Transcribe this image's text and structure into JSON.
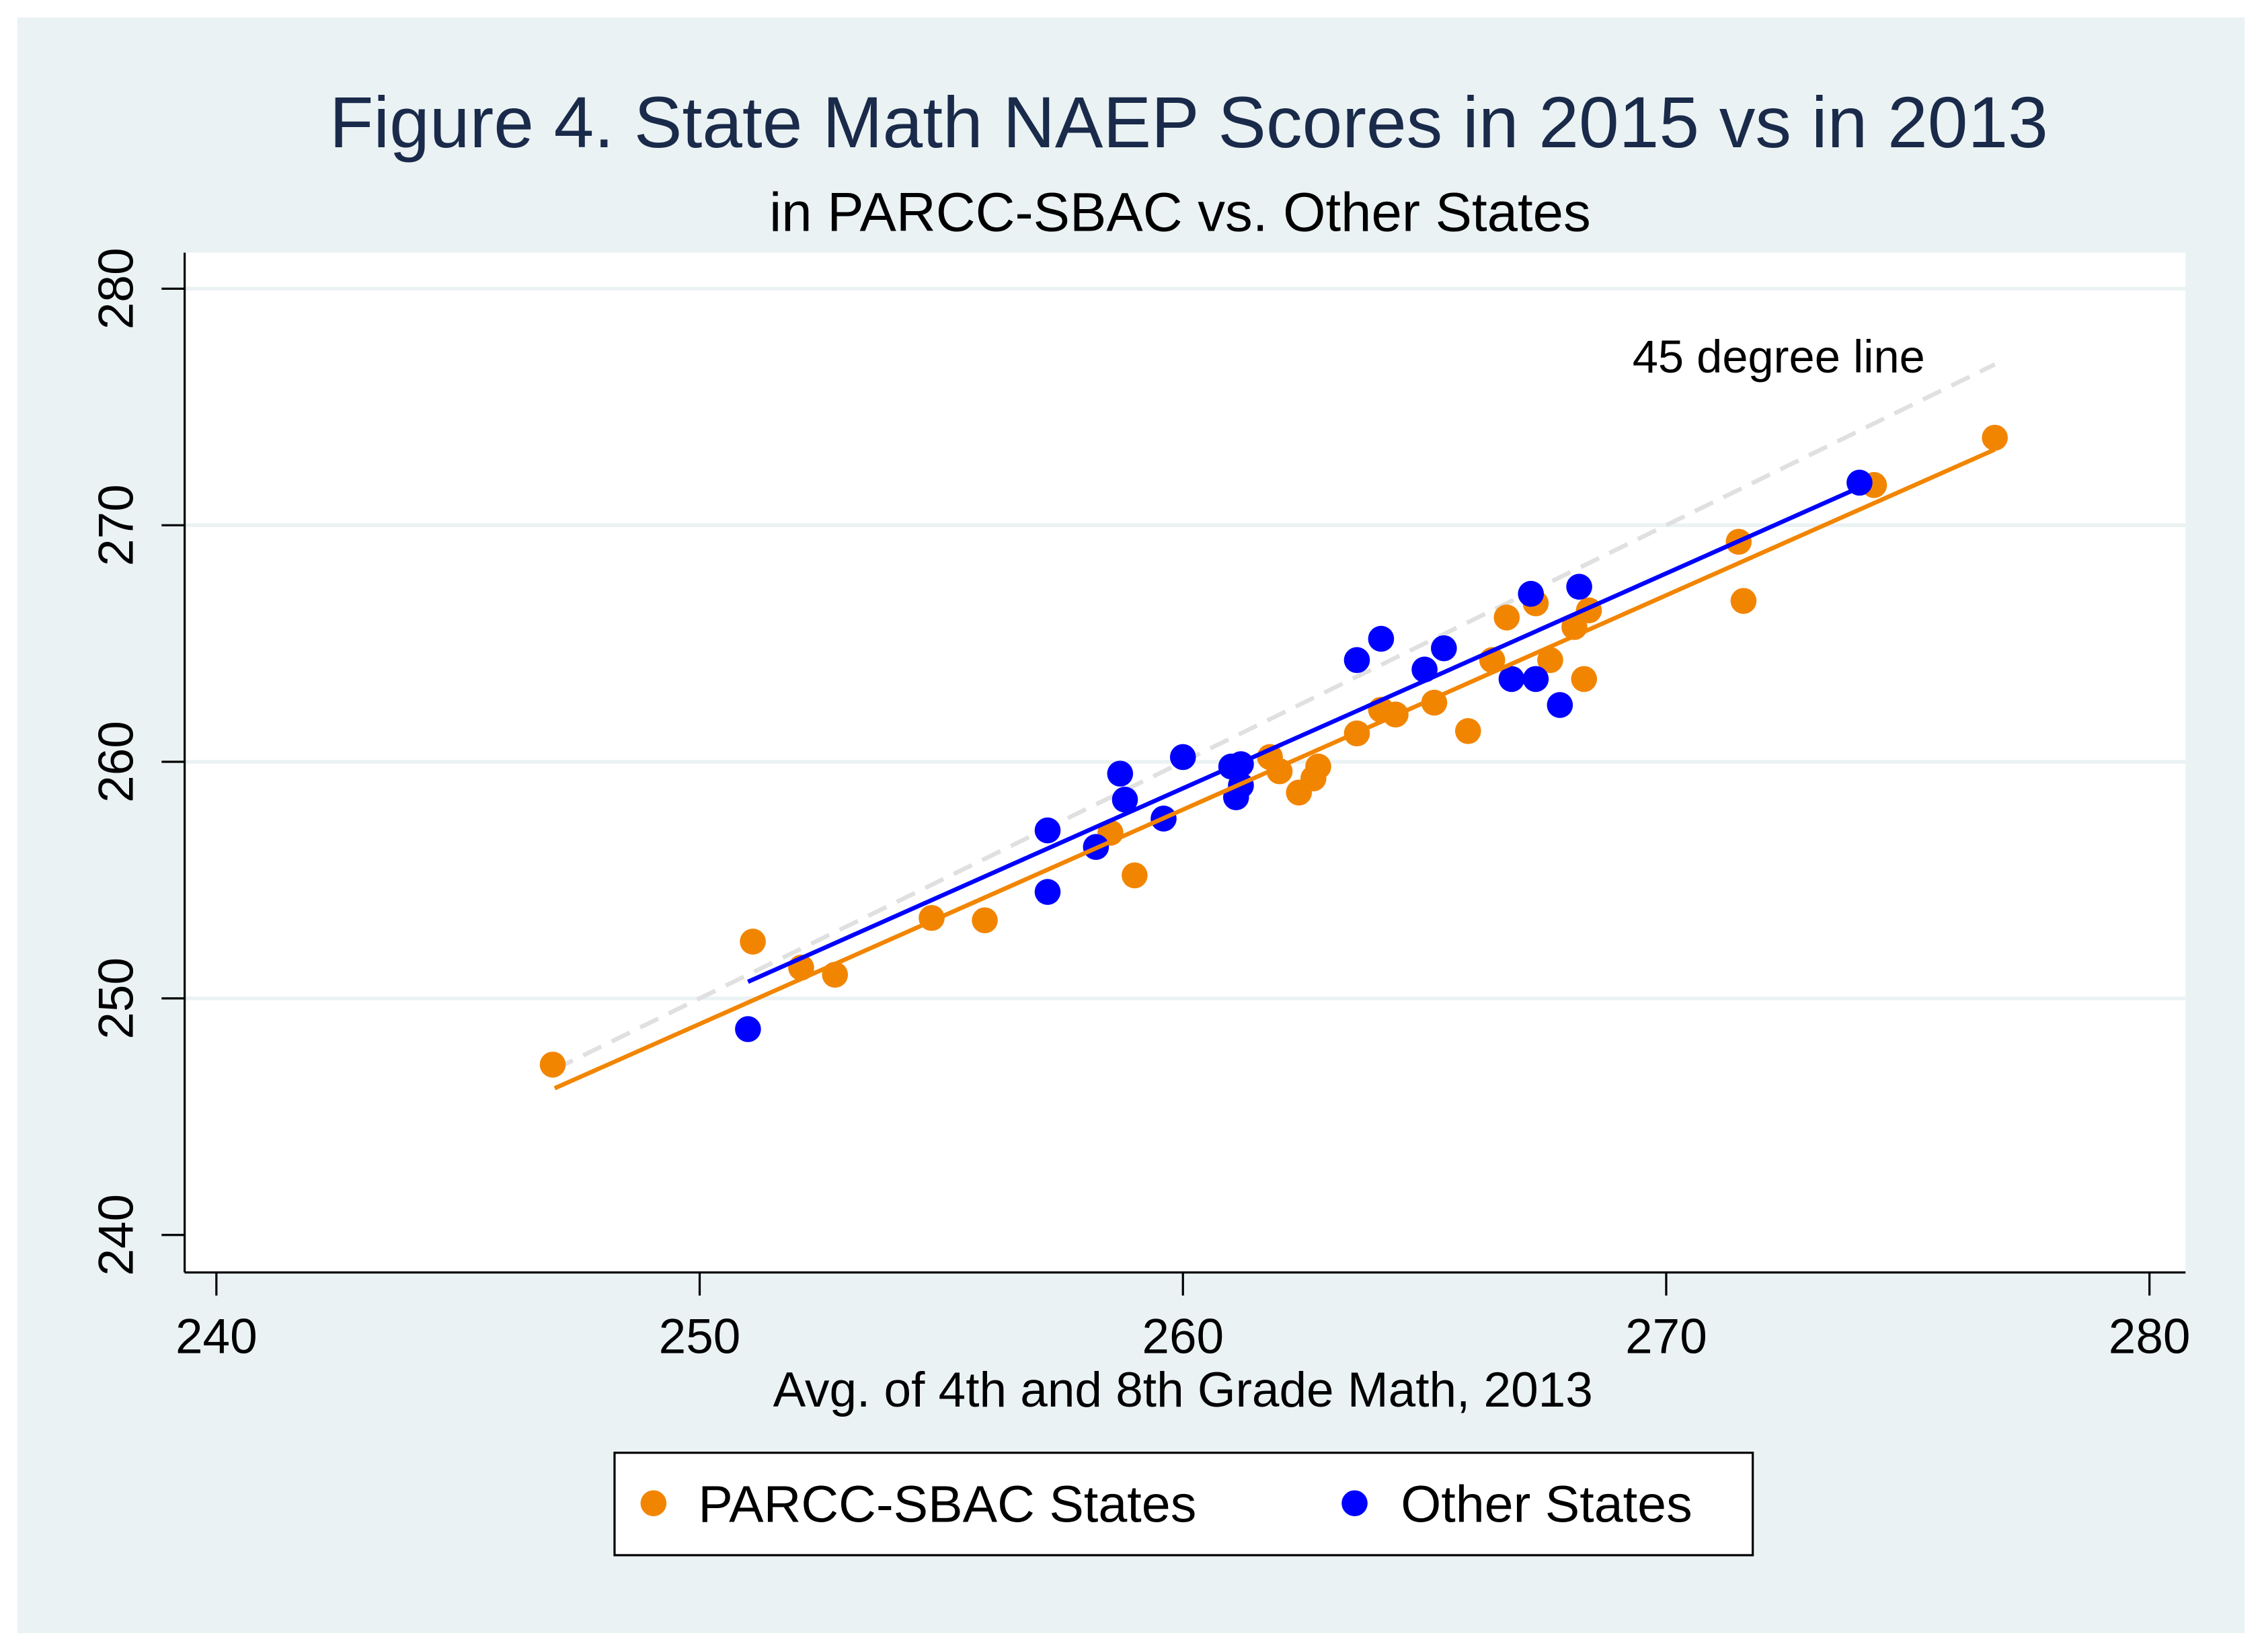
{
  "chart_data": {
    "type": "scatter",
    "title": "Figure 4. State Math NAEP Scores in 2015 vs in 2013",
    "subtitle": "in PARCC-SBAC vs. Other States",
    "xlabel": "Avg. of 4th and 8th Grade Math, 2013",
    "ylabel": "",
    "xlim": [
      240,
      280
    ],
    "ylim": [
      240,
      280
    ],
    "xticks": [
      "240",
      "250",
      "260",
      "270",
      "280"
    ],
    "yticks": [
      "240",
      "250",
      "260",
      "270",
      "280"
    ],
    "grid": true,
    "legend_position": "bottom",
    "annotation": "45 degree line",
    "reference_line": {
      "name": "45 degree line",
      "x": [
        247,
        276.8
      ],
      "y": [
        247,
        276.8
      ],
      "color": "#e0e0e0"
    },
    "series": [
      {
        "name": "PARCC-SBAC States",
        "color": "#f28500",
        "points": [
          [
            246.96,
            247.2
          ],
          [
            251.1,
            252.4
          ],
          [
            252.1,
            251.3
          ],
          [
            252.8,
            251.0
          ],
          [
            254.8,
            253.4
          ],
          [
            255.9,
            253.3
          ],
          [
            258.5,
            257.0
          ],
          [
            259.0,
            255.2
          ],
          [
            261.8,
            260.2
          ],
          [
            262.0,
            259.6
          ],
          [
            262.4,
            258.7
          ],
          [
            262.7,
            259.3
          ],
          [
            262.8,
            259.8
          ],
          [
            263.6,
            261.2
          ],
          [
            264.1,
            262.2
          ],
          [
            264.4,
            262.0
          ],
          [
            265.2,
            262.5
          ],
          [
            265.9,
            261.3
          ],
          [
            266.4,
            264.3
          ],
          [
            266.7,
            266.1
          ],
          [
            267.3,
            266.7
          ],
          [
            267.6,
            264.3
          ],
          [
            268.1,
            265.7
          ],
          [
            268.3,
            263.5
          ],
          [
            268.4,
            266.4
          ],
          [
            271.5,
            269.3
          ],
          [
            271.6,
            266.8
          ],
          [
            274.3,
            271.7
          ],
          [
            276.8,
            273.7
          ]
        ],
        "fit_line": {
          "x": [
            247.0,
            276.8
          ],
          "y": [
            246.2,
            273.2
          ]
        }
      },
      {
        "name": "Other States",
        "color": "#0000ff",
        "points": [
          [
            251.0,
            248.7
          ],
          [
            257.2,
            257.1
          ],
          [
            257.2,
            254.5
          ],
          [
            258.2,
            256.4
          ],
          [
            258.7,
            259.5
          ],
          [
            258.8,
            258.4
          ],
          [
            259.6,
            257.6
          ],
          [
            260.0,
            260.2
          ],
          [
            261.0,
            259.8
          ],
          [
            261.1,
            258.5
          ],
          [
            261.2,
            259.9
          ],
          [
            261.2,
            259.0
          ],
          [
            263.6,
            264.3
          ],
          [
            264.1,
            265.2
          ],
          [
            265.0,
            263.9
          ],
          [
            265.4,
            264.8
          ],
          [
            266.8,
            263.5
          ],
          [
            267.2,
            267.1
          ],
          [
            267.3,
            263.5
          ],
          [
            267.8,
            262.4
          ],
          [
            268.2,
            267.4
          ],
          [
            274.0,
            271.8
          ]
        ],
        "fit_line": {
          "x": [
            251.0,
            274.0
          ],
          "y": [
            250.7,
            271.6
          ]
        }
      }
    ]
  }
}
